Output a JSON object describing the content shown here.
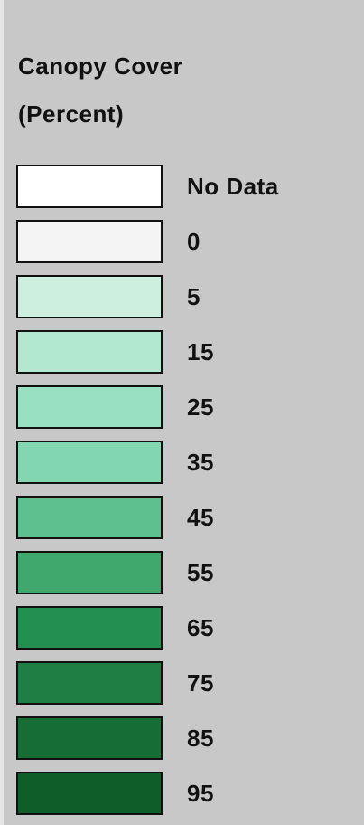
{
  "legend": {
    "title": "Canopy Cover",
    "subtitle": "(Percent)",
    "items": [
      {
        "label": "No Data",
        "color": "#ffffff"
      },
      {
        "label": "0",
        "color": "#f4f4f4"
      },
      {
        "label": "5",
        "color": "#ccefe0"
      },
      {
        "label": "15",
        "color": "#b2e8d0"
      },
      {
        "label": "25",
        "color": "#99e0c3"
      },
      {
        "label": "35",
        "color": "#82d6b0"
      },
      {
        "label": "45",
        "color": "#5ec08f"
      },
      {
        "label": "55",
        "color": "#41a86d"
      },
      {
        "label": "65",
        "color": "#24904f"
      },
      {
        "label": "75",
        "color": "#1f7e44"
      },
      {
        "label": "85",
        "color": "#176e35"
      },
      {
        "label": "95",
        "color": "#0f5e28"
      }
    ]
  }
}
